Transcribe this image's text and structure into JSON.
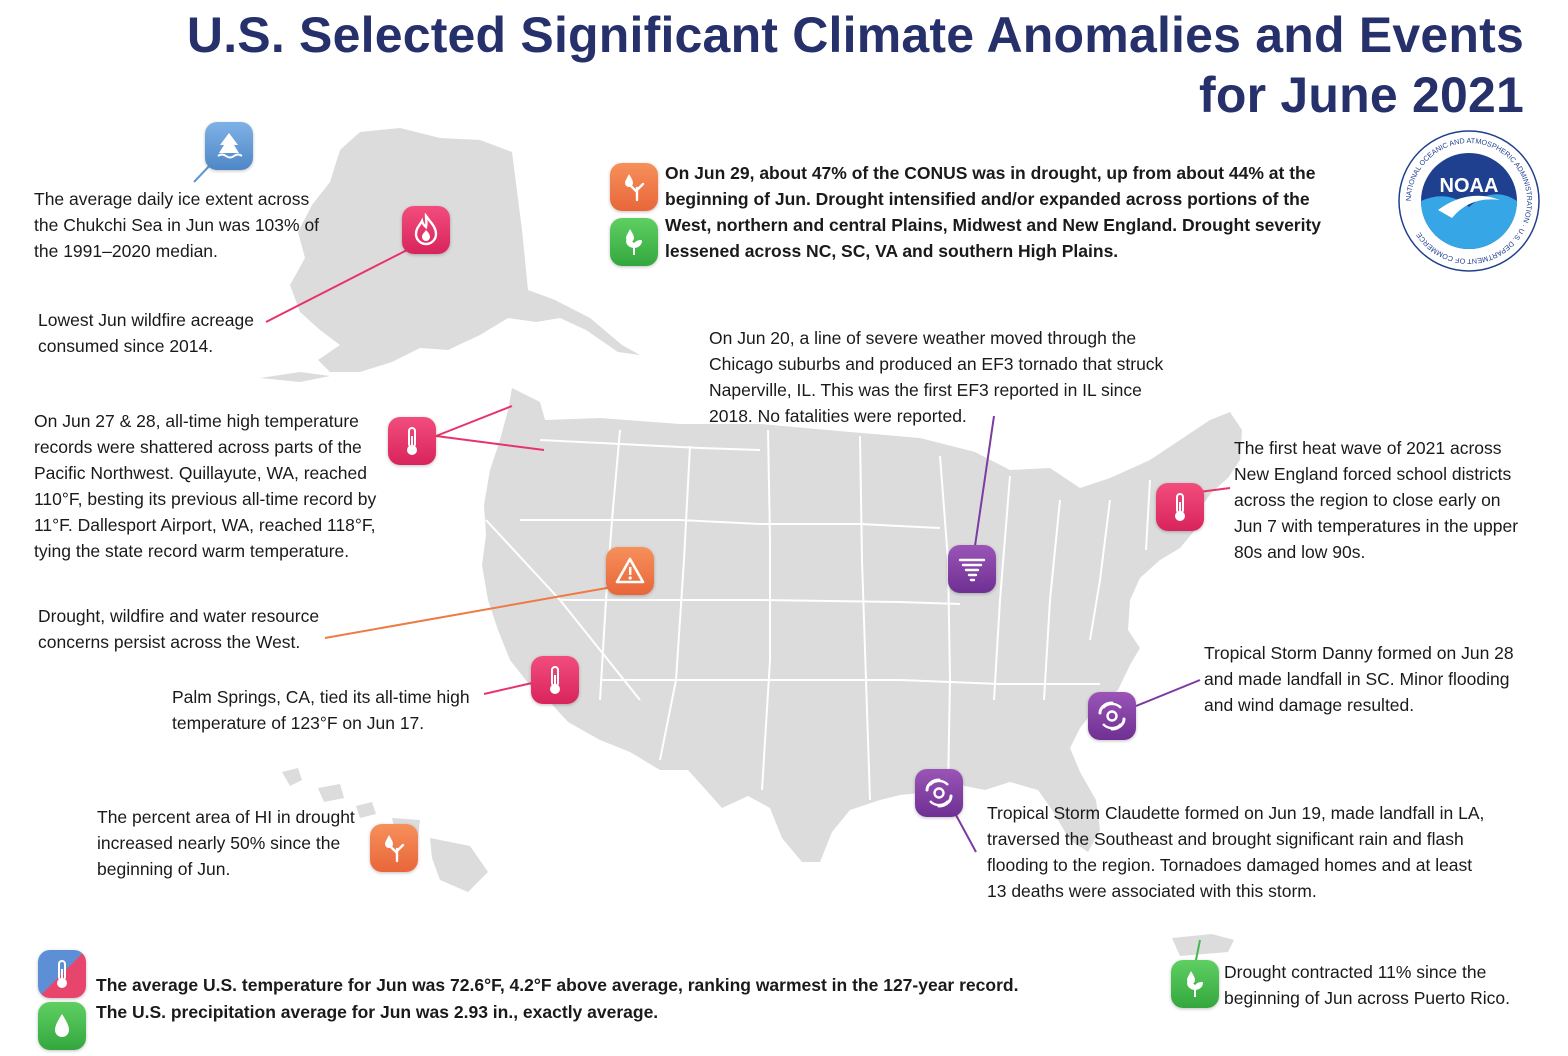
{
  "title": {
    "line1": "U.S. Selected Significant Climate Anomalies and Events",
    "line2": "for June 2021"
  },
  "logo": {
    "name": "NOAA",
    "ring_text": "NATIONAL OCEANIC AND ATMOSPHERIC ADMINISTRATION · U.S. DEPARTMENT OF COMMERCE"
  },
  "colors": {
    "title": "#26306b",
    "map_land": "#dcdcdc",
    "heat_icon": "#e8336a",
    "drought_icon": "#ef7a45",
    "wet_icon": "#45b94c",
    "storm_icon": "#7d3aa0",
    "ice_icon": "#5f97d3"
  },
  "annotations": {
    "alaska_ice": {
      "text": [
        "The average daily ice extent across",
        "the Chukchi Sea in Jun was 103% of",
        "the 1991–2020 median."
      ],
      "icon": "sea-ice-icon"
    },
    "alaska_fire": {
      "text": [
        "Lowest Jun wildfire acreage",
        "consumed since 2014."
      ],
      "icon": "wildfire-icon"
    },
    "pnw_heat": {
      "text": [
        "On Jun 27 & 28, all-time high temperature",
        "records were shattered across parts of the",
        "Pacific Northwest. Quillayute, WA, reached",
        "110°F, besting its previous all-time record by",
        "11°F. Dallesport Airport, WA, reached 118°F,",
        "tying the state record warm temperature."
      ],
      "icon": "thermometer-icon"
    },
    "west_drought": {
      "text": [
        "Drought, wildfire and water resource",
        "concerns persist across the West."
      ],
      "icon": "warning-icon"
    },
    "palm_springs": {
      "text": [
        "Palm Springs, CA, tied its all-time high",
        "temperature of 123°F on Jun 17."
      ],
      "icon": "thermometer-icon"
    },
    "hawaii": {
      "text": [
        "The percent area of HI in drought",
        "increased nearly 50% since the",
        "beginning of Jun."
      ],
      "icon": "drought-icon"
    },
    "conus_drought": {
      "text": [
        "On Jun 29, about 47% of the CONUS was in drought, up from about 44% at the",
        "beginning of Jun. Drought intensified and/or expanded across portions of the",
        "West, northern and central Plains, Midwest and New England. Drought severity",
        "lessened across NC, SC, VA and southern High Plains."
      ],
      "icons": [
        "drought-icon",
        "wet-plant-icon"
      ]
    },
    "chicago_tornado": {
      "text": [
        "On Jun 20, a line of severe weather moved through the",
        "Chicago suburbs and produced an EF3 tornado that struck",
        "Naperville, IL. This was the first EF3 reported in IL since",
        "2018. No fatalities were reported."
      ],
      "icon": "tornado-icon"
    },
    "new_england_heat": {
      "text": [
        "The first heat wave of 2021 across",
        "New England forced school districts",
        "across the region to close early on",
        "Jun 7 with temperatures in the upper",
        "80s and low 90s."
      ],
      "icon": "thermometer-icon"
    },
    "danny": {
      "text": [
        "Tropical Storm Danny formed on Jun 28",
        "and made landfall in SC. Minor flooding",
        "and wind damage resulted."
      ],
      "icon": "hurricane-icon"
    },
    "claudette": {
      "text": [
        "Tropical Storm Claudette formed on Jun 19, made landfall in LA,",
        "traversed the Southeast and brought significant rain and flash",
        "flooding to the region. Tornadoes damaged homes and at least",
        "13 deaths were associated with this storm."
      ],
      "icon": "hurricane-icon"
    },
    "puerto_rico": {
      "text": [
        "Drought contracted 11% since the",
        "beginning of Jun across Puerto Rico."
      ],
      "icon": "wet-plant-icon"
    }
  },
  "summary": {
    "temperature": "The average U.S. temperature for Jun was 72.6°F, 4.2°F above average, ranking warmest in the 127-year record.",
    "precipitation": "The U.S. precipitation average for Jun was 2.93 in., exactly average."
  }
}
